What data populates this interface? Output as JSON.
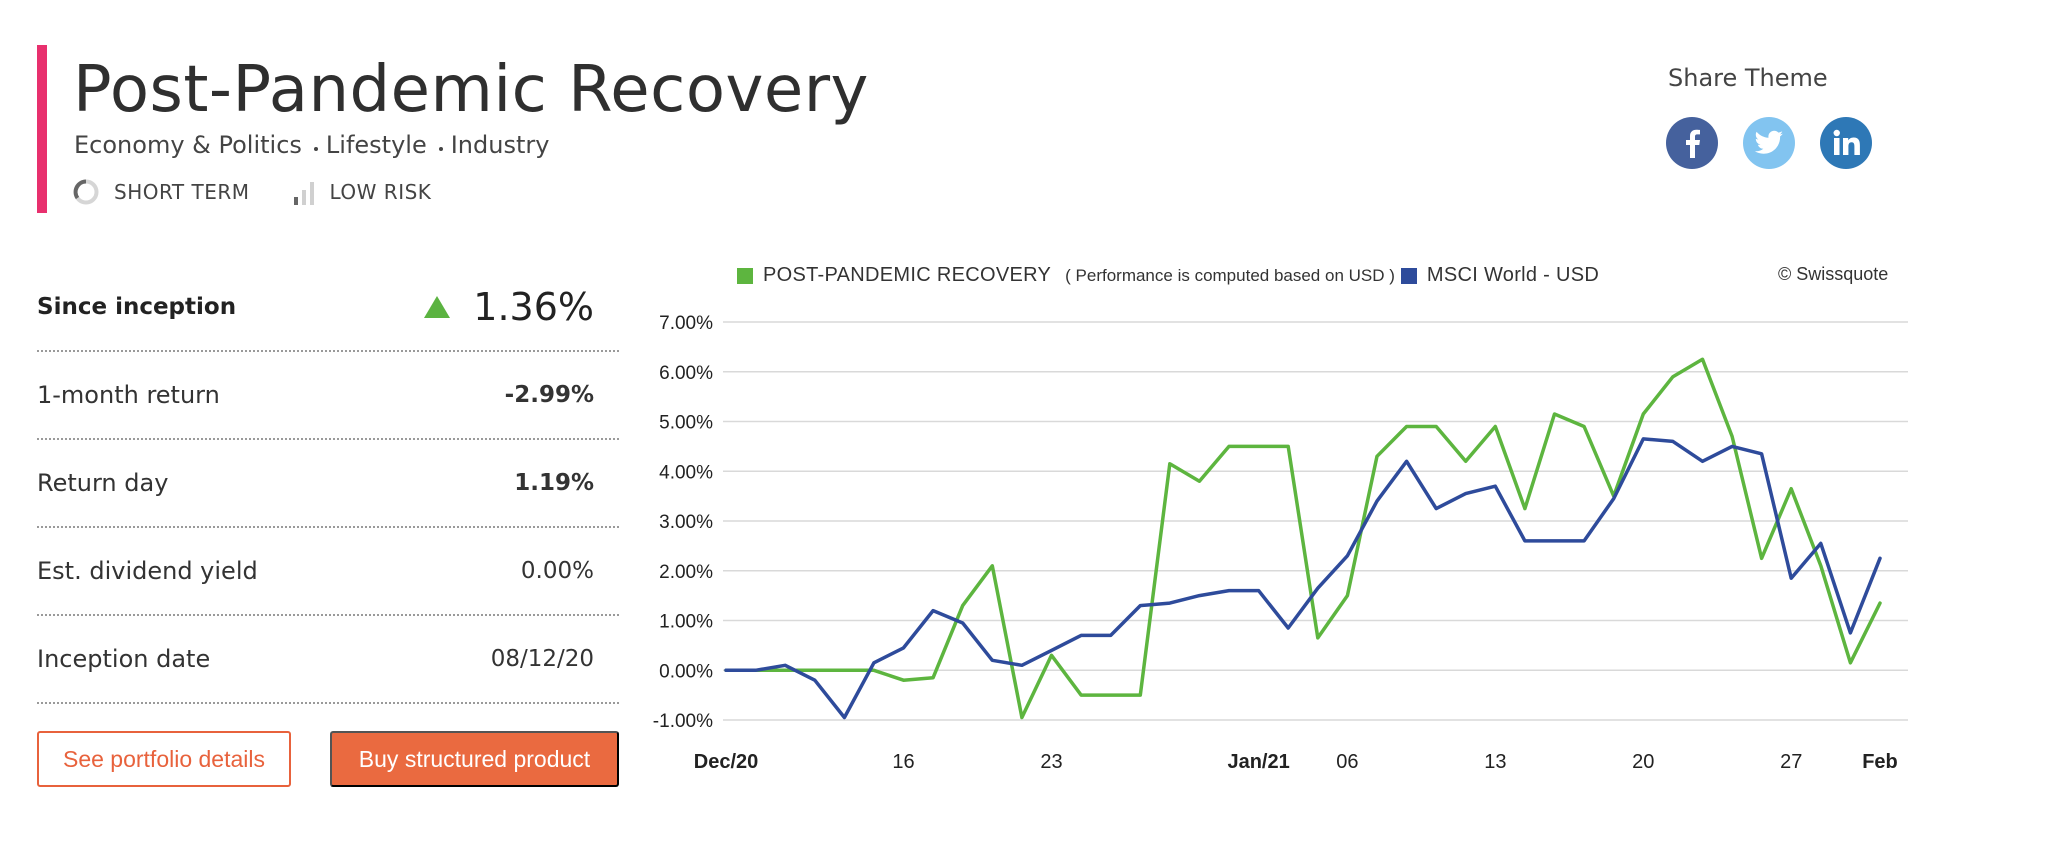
{
  "theme": {
    "title": "Post-Pandemic Recovery",
    "categories": [
      "Economy & Politics",
      "Lifestyle",
      "Industry"
    ],
    "horizon": "SHORT TERM",
    "risk": "LOW RISK",
    "accent_color": "#e8306e"
  },
  "share": {
    "label": "Share Theme",
    "networks": [
      {
        "name": "facebook",
        "icon": "facebook-icon",
        "color": "#45619d"
      },
      {
        "name": "twitter",
        "icon": "twitter-icon",
        "color": "#82c4f0"
      },
      {
        "name": "linkedin",
        "icon": "linkedin-icon",
        "color": "#2e78b6"
      }
    ]
  },
  "stats": {
    "since_inception": {
      "label": "Since inception",
      "value": "1.36%",
      "trend": "up",
      "trend_color": "#5bb341"
    },
    "one_month": {
      "label": "1-month return",
      "value": "-2.99%"
    },
    "return_day": {
      "label": "Return day",
      "value": "1.19%"
    },
    "dividend": {
      "label": "Est. dividend yield",
      "value": "0.00%"
    },
    "inception_date": {
      "label": "Inception date",
      "value": "08/12/20"
    }
  },
  "actions": {
    "portfolio": "See portfolio details",
    "buy": "Buy structured product"
  },
  "chart_data": {
    "type": "line",
    "title": "",
    "xlabel": "",
    "ylabel": "",
    "copyright": "© Swissquote",
    "note": "( Performance is computed based on USD )",
    "ylim": [
      -1,
      7
    ],
    "y_ticks": [
      -1,
      0,
      1,
      2,
      3,
      4,
      5,
      6,
      7
    ],
    "y_tick_labels": [
      "-1.00%",
      "0.00%",
      "1.00%",
      "2.00%",
      "3.00%",
      "4.00%",
      "5.00%",
      "6.00%",
      "7.00%"
    ],
    "x_ticks": [
      {
        "label": "Dec/20",
        "index": 0,
        "bold": true
      },
      {
        "label": "16",
        "index": 6,
        "bold": false
      },
      {
        "label": "23",
        "index": 11,
        "bold": false
      },
      {
        "label": "Jan/21",
        "index": 18,
        "bold": true
      },
      {
        "label": "06",
        "index": 21,
        "bold": false
      },
      {
        "label": "13",
        "index": 26,
        "bold": false
      },
      {
        "label": "20",
        "index": 31,
        "bold": false
      },
      {
        "label": "27",
        "index": 36,
        "bold": false
      },
      {
        "label": "Feb",
        "index": 39,
        "bold": true
      }
    ],
    "grid": true,
    "legend_position": "top",
    "series": [
      {
        "name": "POST-PANDEMIC RECOVERY",
        "color": "#5db53f",
        "values": [
          0,
          0,
          0,
          0,
          0,
          0,
          -0.2,
          -0.15,
          1.3,
          2.1,
          -0.95,
          0.3,
          -0.5,
          -0.5,
          -0.5,
          4.15,
          3.8,
          4.5,
          4.5,
          4.5,
          0.65,
          1.5,
          4.3,
          4.9,
          4.9,
          4.2,
          4.9,
          3.25,
          5.15,
          4.9,
          3.5,
          5.15,
          5.9,
          6.25,
          4.7,
          2.25,
          3.65,
          2.1,
          0.15,
          1.35
        ]
      },
      {
        "name": "MSCI World - USD",
        "color": "#2e4b9b",
        "values": [
          0,
          0,
          0.1,
          -0.2,
          -0.95,
          0.15,
          0.45,
          1.2,
          0.95,
          0.2,
          0.1,
          0.4,
          0.7,
          0.7,
          1.3,
          1.35,
          1.5,
          1.6,
          1.6,
          0.85,
          1.65,
          2.3,
          3.4,
          4.2,
          3.25,
          3.55,
          3.7,
          2.6,
          2.6,
          2.6,
          3.45,
          4.65,
          4.6,
          4.2,
          4.5,
          4.35,
          1.85,
          2.55,
          0.75,
          2.25
        ]
      }
    ]
  }
}
